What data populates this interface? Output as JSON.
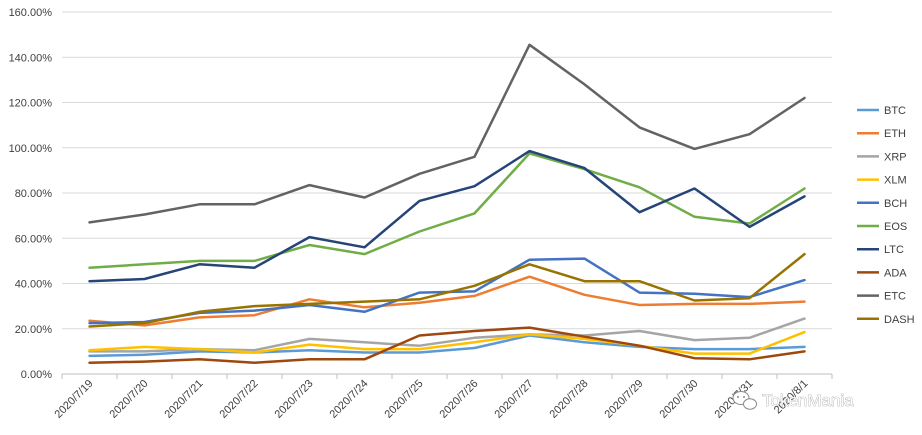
{
  "chart_data": {
    "type": "line",
    "categories": [
      "2020/7/19",
      "2020/7/20",
      "2020/7/21",
      "2020/7/22",
      "2020/7/23",
      "2020/7/24",
      "2020/7/25",
      "2020/7/26",
      "2020/7/27",
      "2020/7/28",
      "2020/7/29",
      "2020/7/30",
      "2020/7/31",
      "2020/8/1"
    ],
    "x_tick_labels": [
      "2020/7/19",
      "2020/7/20",
      "2020/7/21",
      "2020/7/22",
      "2020/7/23",
      "2020/7/24",
      "2020/7/25",
      "2020/7/26",
      "2020/7/27",
      "2020/7/28",
      "2020/7/29",
      "2020/7/30",
      "2020/7/31",
      "2020/8/1"
    ],
    "y_ticks": [
      0,
      20,
      40,
      60,
      80,
      100,
      120,
      140,
      160
    ],
    "y_tick_labels": [
      "0.00%",
      "20.00%",
      "40.00%",
      "60.00%",
      "80.00%",
      "100.00%",
      "120.00%",
      "140.00%",
      "160.00%"
    ],
    "ylim": [
      0,
      160
    ],
    "y_unit": "percent",
    "grid": "horizontal",
    "legend_position": "right",
    "series": [
      {
        "name": "BTC",
        "color": "#5B9BD5",
        "values": [
          8,
          8.5,
          10,
          9.5,
          10.5,
          9.5,
          9.5,
          11.5,
          17,
          14,
          12,
          11,
          11,
          12
        ]
      },
      {
        "name": "ETH",
        "color": "#ED7D31",
        "values": [
          23.5,
          21.5,
          25,
          26,
          33,
          29.5,
          31.5,
          34.5,
          43,
          35,
          30.5,
          31,
          31,
          32
        ]
      },
      {
        "name": "XRP",
        "color": "#A5A5A5",
        "values": [
          10,
          10,
          11,
          10.5,
          15.5,
          14,
          12.5,
          16,
          17.5,
          17,
          19,
          15,
          16,
          24.5
        ]
      },
      {
        "name": "XLM",
        "color": "#FFC000",
        "values": [
          10.5,
          12,
          11,
          9.5,
          13,
          11,
          11,
          14,
          17.5,
          15.5,
          12.5,
          9,
          9,
          18.5
        ]
      },
      {
        "name": "BCH",
        "color": "#4472C4",
        "values": [
          22.5,
          23,
          27,
          28,
          30.5,
          27.5,
          36,
          36.5,
          50.5,
          51,
          36,
          35.5,
          34,
          41.5
        ]
      },
      {
        "name": "EOS",
        "color": "#70AD47",
        "values": [
          47,
          48.5,
          50,
          50,
          57,
          53,
          63,
          71,
          97.5,
          90.5,
          82.5,
          69.5,
          66.5,
          82
        ]
      },
      {
        "name": "LTC",
        "color": "#264478",
        "values": [
          41,
          42,
          48.5,
          47,
          60.5,
          56,
          76.5,
          83,
          98.5,
          91,
          71.5,
          82,
          65,
          78.5
        ]
      },
      {
        "name": "ADA",
        "color": "#9E480E",
        "values": [
          5,
          5.5,
          6.5,
          5,
          6.5,
          6.5,
          17,
          19,
          20.5,
          16.5,
          12.5,
          7,
          6.5,
          10
        ]
      },
      {
        "name": "ETC",
        "color": "#636363",
        "values": [
          67,
          70.5,
          75,
          75,
          83.5,
          78,
          88.5,
          96,
          145.5,
          128,
          109,
          99.5,
          106,
          122
        ]
      },
      {
        "name": "DASH",
        "color": "#997300",
        "values": [
          21,
          22.5,
          27.5,
          30,
          31,
          32,
          33,
          39,
          48.5,
          41,
          41,
          32.5,
          33.5,
          53
        ]
      }
    ]
  },
  "watermark": {
    "text": "TokenMania",
    "icon": "wechat-icon"
  }
}
